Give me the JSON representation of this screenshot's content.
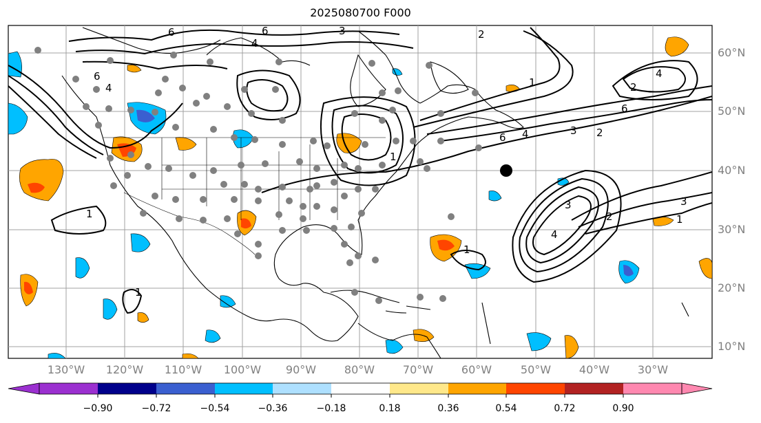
{
  "title": "2025080700 F000",
  "lat_labels": [
    "60°N",
    "50°N",
    "40°N",
    "30°N",
    "20°N",
    "10°N"
  ],
  "lon_labels": [
    "130°W",
    "120°W",
    "110°W",
    "100°W",
    "90°W",
    "80°W",
    "70°W",
    "60°W",
    "50°W",
    "40°W",
    "30°W"
  ],
  "contour_labels": [
    "6",
    "4",
    "6",
    "3",
    "2",
    "6",
    "4",
    "1",
    "6",
    "4",
    "3",
    "2",
    "1",
    "4",
    "6",
    "3",
    "2",
    "1",
    "4",
    "2",
    "3",
    "1",
    "1",
    "1"
  ],
  "colorbar": {
    "ticks": [
      "−0.90",
      "−0.72",
      "−0.54",
      "−0.36",
      "−0.18",
      "0.18",
      "0.36",
      "0.54",
      "0.72",
      "0.90"
    ],
    "colors": [
      "#9b30d0",
      "#00008b",
      "#3a5fd0",
      "#00bfff",
      "#aee0ff",
      "#ffffff",
      "#ffe88a",
      "#ffa500",
      "#ff4500",
      "#b22222",
      "#ff88b0"
    ]
  },
  "colors": {
    "land_outline": "#000000",
    "grid": "#a0a0a0",
    "station_dot": "#808080",
    "marker": "#000000"
  }
}
